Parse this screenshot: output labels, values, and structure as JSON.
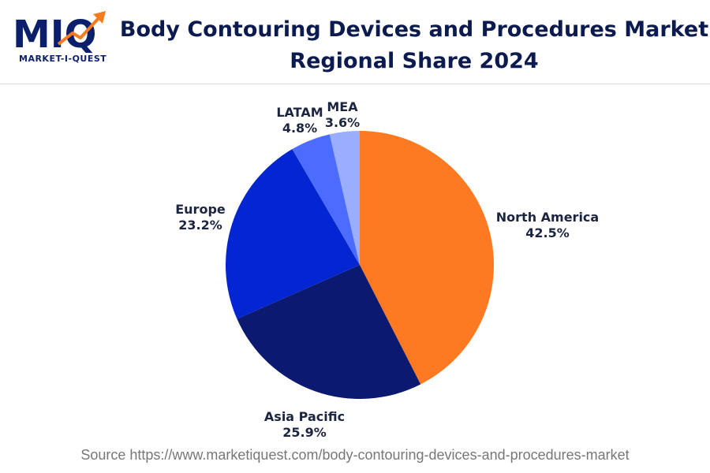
{
  "brand": {
    "logo_mark": "MIQ",
    "logo_text": "MARKET-I-QUEST",
    "colors": {
      "navy": "#0b1f6b",
      "orange": "#f47b20"
    }
  },
  "header": {
    "title_line1": "Body Contouring Devices and Procedures Market",
    "title_line2": "Regional Share 2024"
  },
  "chart_data": {
    "type": "pie",
    "title": "Body Contouring Devices and Procedures Market Regional Share 2024",
    "unit": "%",
    "start": "12 o'clock, clockwise",
    "slices": [
      {
        "label": "North America",
        "value": 42.5,
        "display": "42.5%",
        "color": "#fd7a22"
      },
      {
        "label": "Asia Pacific",
        "value": 25.9,
        "display": "25.9%",
        "color": "#0b1970"
      },
      {
        "label": "Europe",
        "value": 23.2,
        "display": "23.2%",
        "color": "#0326d2"
      },
      {
        "label": "LATAM",
        "value": 4.8,
        "display": "4.8%",
        "color": "#4c6bff"
      },
      {
        "label": "MEA",
        "value": 3.6,
        "display": "3.6%",
        "color": "#9aadff"
      }
    ]
  },
  "footer": {
    "source": "Source https://www.marketiquest.com/body-contouring-devices-and-procedures-market"
  }
}
